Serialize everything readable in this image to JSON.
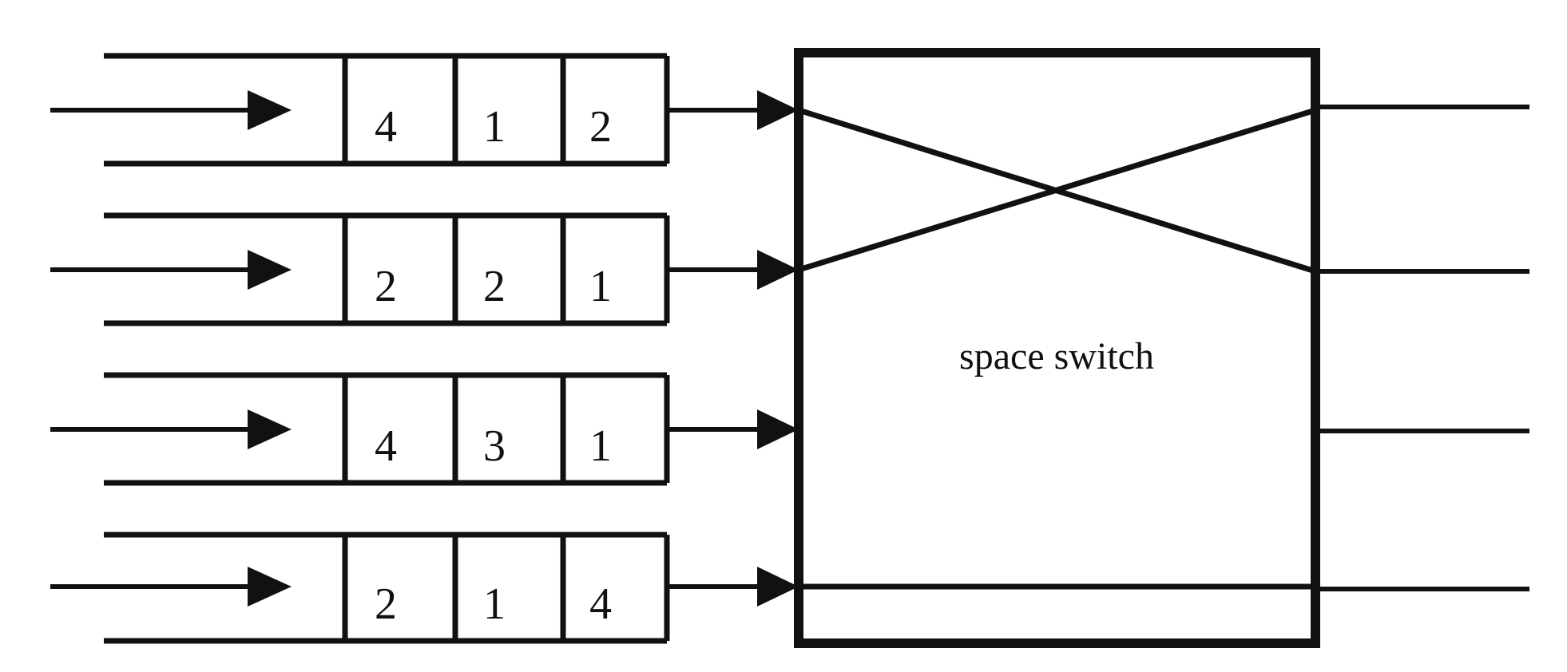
{
  "switch": {
    "label": "space switch"
  },
  "queues": [
    {
      "cells": [
        "4",
        "1",
        "2"
      ]
    },
    {
      "cells": [
        "2",
        "2",
        "1"
      ]
    },
    {
      "cells": [
        "4",
        "3",
        "1"
      ]
    },
    {
      "cells": [
        "2",
        "1",
        "4"
      ]
    }
  ],
  "connections": [
    {
      "input": 1,
      "output": 2
    },
    {
      "input": 2,
      "output": 1
    },
    {
      "input": 4,
      "output": 4
    }
  ],
  "colors": {
    "line": "#111111",
    "background": "#ffffff"
  }
}
